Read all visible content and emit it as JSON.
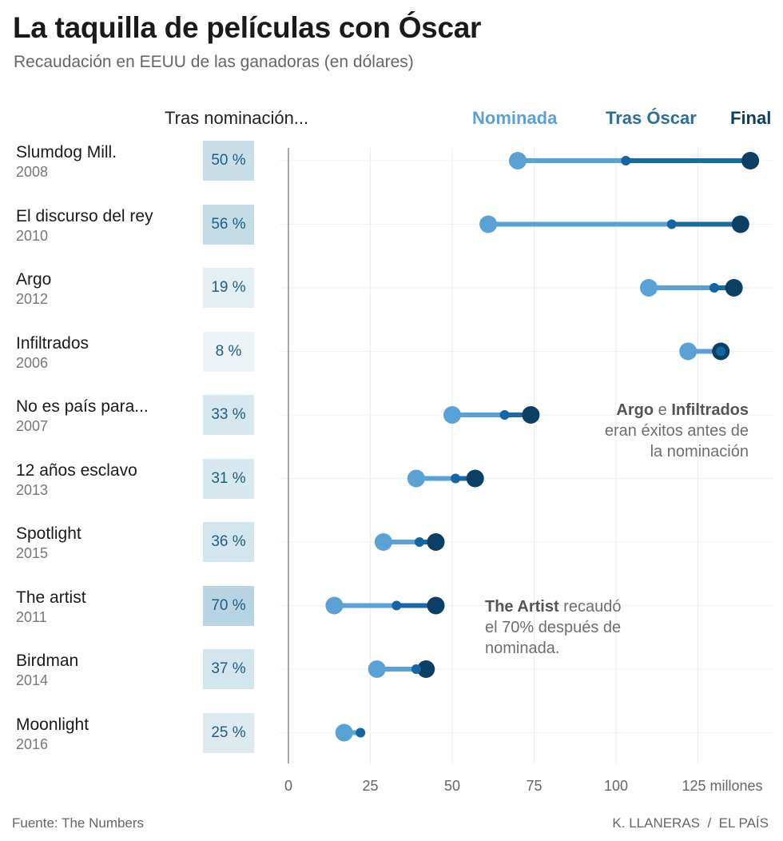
{
  "title": "La taquilla de películas con Óscar",
  "subtitle": "Recaudación en EEUU de las ganadoras (en dólares)",
  "header": {
    "after_nomination": "Tras nominación...",
    "legend": [
      {
        "key": "nominada",
        "label": "Nominada",
        "color": "#5aa1d6"
      },
      {
        "key": "tras_oscar",
        "label": "Tras Óscar",
        "color": "#2d6f98"
      },
      {
        "key": "final",
        "label": "Final",
        "color": "#0b3f63"
      }
    ]
  },
  "annotations": {
    "argo": {
      "bold1": "Argo",
      "mid": " e ",
      "bold2": "Infiltrados",
      "line2": "eran éxitos antes de",
      "line3": "la nominación"
    },
    "artist": {
      "bold": "The Artist",
      "rest": " recaudó",
      "line2": "el 70% después de",
      "line3": "nominada."
    }
  },
  "footer": {
    "source": "Fuente: The Numbers",
    "credit": "K. LLANERAS  /  EL PAÍS"
  },
  "colors": {
    "nominada": "#5aa1d6",
    "tras_oscar": "#1665a3",
    "final": "#0b3f63",
    "line_dark": "#1a6aa5",
    "box_base": "#e3eff5",
    "box_strong": "#a6ccd9"
  },
  "chart_data": {
    "type": "dot-range",
    "title": "La taquilla de películas con Óscar",
    "unit": "millones",
    "xlim": [
      0,
      145
    ],
    "xticks": [
      0,
      25,
      50,
      75,
      100,
      125
    ],
    "xtick_labels": [
      "0",
      "25",
      "50",
      "75",
      "100",
      "125 millones"
    ],
    "series_names": [
      "Nominada",
      "Tras Óscar",
      "Final"
    ],
    "rows": [
      {
        "title": "Slumdog Mill.",
        "year": "2008",
        "pct_label": "50 %",
        "pct": 50,
        "nominada": 70,
        "tras_oscar": 103,
        "final": 141
      },
      {
        "title": "El discurso del rey",
        "year": "2010",
        "pct_label": "56 %",
        "pct": 56,
        "nominada": 61,
        "tras_oscar": 117,
        "final": 138
      },
      {
        "title": "Argo",
        "year": "2012",
        "pct_label": "19 %",
        "pct": 19,
        "nominada": 110,
        "tras_oscar": 130,
        "final": 136
      },
      {
        "title": "Infiltrados",
        "year": "2006",
        "pct_label": "8 %",
        "pct": 8,
        "nominada": 122,
        "tras_oscar": 132,
        "final": 132
      },
      {
        "title": "No es país para...",
        "year": "2007",
        "pct_label": "33 %",
        "pct": 33,
        "nominada": 50,
        "tras_oscar": 66,
        "final": 74
      },
      {
        "title": "12 años esclavo",
        "year": "2013",
        "pct_label": "31 %",
        "pct": 31,
        "nominada": 39,
        "tras_oscar": 51,
        "final": 57
      },
      {
        "title": "Spotlight",
        "year": "2015",
        "pct_label": "36 %",
        "pct": 36,
        "nominada": 29,
        "tras_oscar": 40,
        "final": 45
      },
      {
        "title": "The artist",
        "year": "2011",
        "pct_label": "70 %",
        "pct": 70,
        "nominada": 14,
        "tras_oscar": 33,
        "final": 45
      },
      {
        "title": "Birdman",
        "year": "2014",
        "pct_label": "37 %",
        "pct": 37,
        "nominada": 27,
        "tras_oscar": 39,
        "final": 42
      },
      {
        "title": "Moonlight",
        "year": "2016",
        "pct_label": "25 %",
        "pct": 25,
        "nominada": 17,
        "tras_oscar": 22,
        "final": 22
      }
    ]
  }
}
